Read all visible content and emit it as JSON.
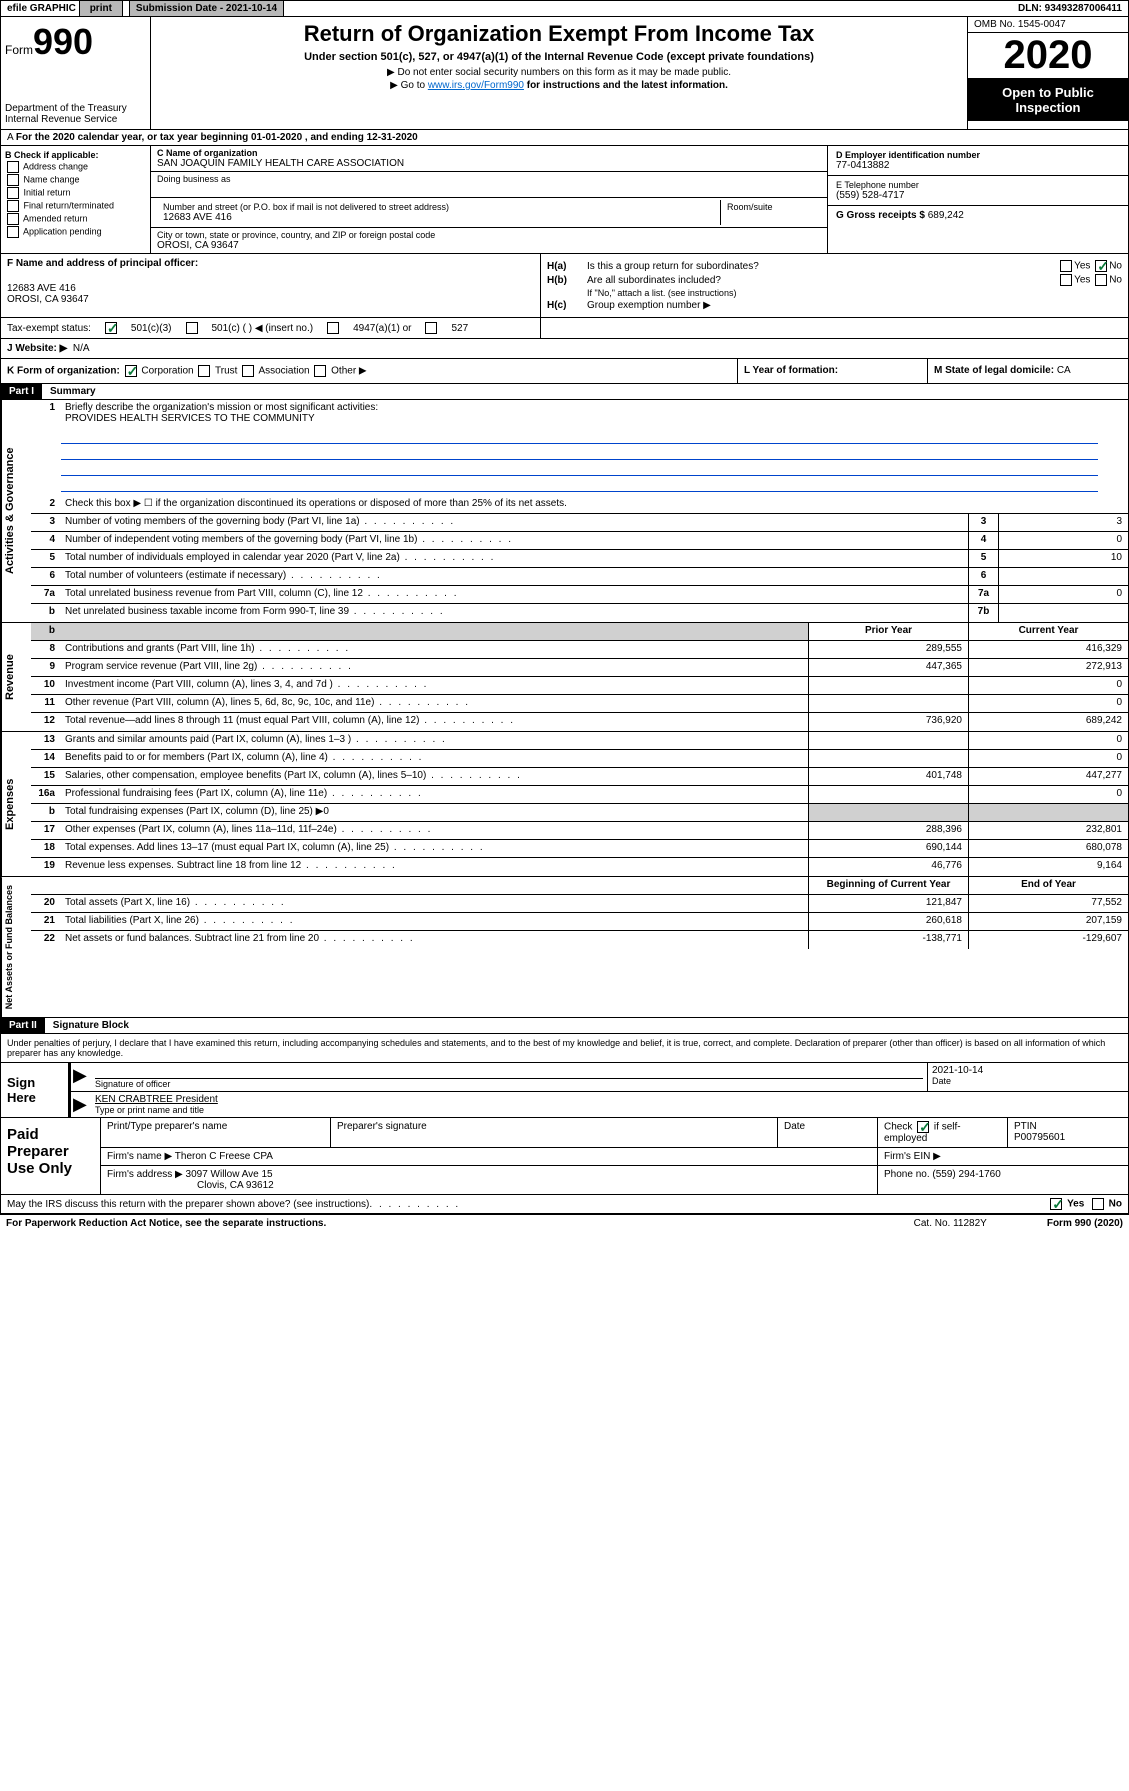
{
  "topbar": {
    "efile_label": "efile GRAPHIC",
    "print_label": "print",
    "sub_date_label": "Submission Date - 2021-10-14",
    "dln": "DLN: 93493287006411"
  },
  "header": {
    "form_word": "Form",
    "form_num": "990",
    "dept": "Department of the Treasury\nInternal Revenue Service",
    "title": "Return of Organization Exempt From Income Tax",
    "subtitle": "Under section 501(c), 527, or 4947(a)(1) of the Internal Revenue Code (except private foundations)",
    "inst1": "▶ Do not enter social security numbers on this form as it may be made public.",
    "inst2_pre": "▶ Go to ",
    "inst2_link": "www.irs.gov/Form990",
    "inst2_post": " for instructions and the latest information.",
    "omb": "OMB No. 1545-0047",
    "year": "2020",
    "open_public": "Open to Public Inspection"
  },
  "period": "For the 2020 calendar year, or tax year beginning 01-01-2020    , and ending 12-31-2020",
  "section_b": {
    "header": "B Check if applicable:",
    "items": [
      "Address change",
      "Name change",
      "Initial return",
      "Final return/terminated",
      "Amended return",
      "Application pending"
    ]
  },
  "section_c": {
    "name_label": "C Name of organization",
    "name": "SAN JOAQUIN FAMILY HEALTH CARE ASSOCIATION",
    "dba_label": "Doing business as",
    "addr_label": "Number and street (or P.O. box if mail is not delivered to street address)",
    "room_label": "Room/suite",
    "addr": "12683 AVE 416",
    "city_label": "City or town, state or province, country, and ZIP or foreign postal code",
    "city": "OROSI, CA  93647"
  },
  "section_d": {
    "label": "D Employer identification number",
    "value": "77-0413882"
  },
  "section_e": {
    "label": "E Telephone number",
    "value": "(559) 528-4717"
  },
  "section_g": {
    "label": "G Gross receipts $",
    "value": "689,242"
  },
  "section_f": {
    "label": "F  Name and address of principal officer:",
    "addr1": "12683 AVE 416",
    "addr2": "OROSI, CA  93647"
  },
  "section_h": {
    "ha": "Is this a group return for subordinates?",
    "hb": "Are all subordinates included?",
    "hb_note": "If \"No,\" attach a list. (see instructions)",
    "hc": "Group exemption number ▶",
    "yes": "Yes",
    "no": "No"
  },
  "tax_status": {
    "label": "Tax-exempt status:",
    "opt1": "501(c)(3)",
    "opt2": "501(c) (  ) ◀ (insert no.)",
    "opt3": "4947(a)(1) or",
    "opt4": "527"
  },
  "section_j": {
    "label": "J    Website: ▶",
    "value": "N/A"
  },
  "section_k": {
    "label": "K Form of organization:",
    "opts": [
      "Corporation",
      "Trust",
      "Association",
      "Other ▶"
    ]
  },
  "section_l": {
    "label": "L Year of formation:",
    "value": ""
  },
  "section_m": {
    "label": "M State of legal domicile:",
    "value": "CA"
  },
  "part1": {
    "tag": "Part I",
    "title": "Summary"
  },
  "summary": {
    "q1_label": "Briefly describe the organization's mission or most significant activities:",
    "q1_text": "PROVIDES HEALTH SERVICES TO THE COMMUNITY",
    "q2": "Check this box ▶ ☐  if the organization discontinued its operations or disposed of more than 25% of its net assets.",
    "rows_gov": [
      {
        "n": "3",
        "d": "Number of voting members of the governing body (Part VI, line 1a)",
        "bn": "3",
        "v": "3"
      },
      {
        "n": "4",
        "d": "Number of independent voting members of the governing body (Part VI, line 1b)",
        "bn": "4",
        "v": "0"
      },
      {
        "n": "5",
        "d": "Total number of individuals employed in calendar year 2020 (Part V, line 2a)",
        "bn": "5",
        "v": "10"
      },
      {
        "n": "6",
        "d": "Total number of volunteers (estimate if necessary)",
        "bn": "6",
        "v": ""
      },
      {
        "n": "7a",
        "d": "Total unrelated business revenue from Part VIII, column (C), line 12",
        "bn": "7a",
        "v": "0"
      },
      {
        "n": "b",
        "d": "Net unrelated business taxable income from Form 990-T, line 39",
        "bn": "7b",
        "v": ""
      }
    ],
    "col_prior": "Prior Year",
    "col_current": "Current Year",
    "rows_rev": [
      {
        "n": "8",
        "d": "Contributions and grants (Part VIII, line 1h)",
        "p": "289,555",
        "c": "416,329"
      },
      {
        "n": "9",
        "d": "Program service revenue (Part VIII, line 2g)",
        "p": "447,365",
        "c": "272,913"
      },
      {
        "n": "10",
        "d": "Investment income (Part VIII, column (A), lines 3, 4, and 7d )",
        "p": "",
        "c": "0"
      },
      {
        "n": "11",
        "d": "Other revenue (Part VIII, column (A), lines 5, 6d, 8c, 9c, 10c, and 11e)",
        "p": "",
        "c": "0"
      },
      {
        "n": "12",
        "d": "Total revenue—add lines 8 through 11 (must equal Part VIII, column (A), line 12)",
        "p": "736,920",
        "c": "689,242"
      }
    ],
    "rows_exp": [
      {
        "n": "13",
        "d": "Grants and similar amounts paid (Part IX, column (A), lines 1–3 )",
        "p": "",
        "c": "0"
      },
      {
        "n": "14",
        "d": "Benefits paid to or for members (Part IX, column (A), line 4)",
        "p": "",
        "c": "0"
      },
      {
        "n": "15",
        "d": "Salaries, other compensation, employee benefits (Part IX, column (A), lines 5–10)",
        "p": "401,748",
        "c": "447,277"
      },
      {
        "n": "16a",
        "d": "Professional fundraising fees (Part IX, column (A), line 11e)",
        "p": "",
        "c": "0"
      },
      {
        "n": "b",
        "d": "Total fundraising expenses (Part IX, column (D), line 25) ▶0",
        "p": "grey",
        "c": "grey"
      },
      {
        "n": "17",
        "d": "Other expenses (Part IX, column (A), lines 11a–11d, 11f–24e)",
        "p": "288,396",
        "c": "232,801"
      },
      {
        "n": "18",
        "d": "Total expenses. Add lines 13–17 (must equal Part IX, column (A), line 25)",
        "p": "690,144",
        "c": "680,078"
      },
      {
        "n": "19",
        "d": "Revenue less expenses. Subtract line 18 from line 12",
        "p": "46,776",
        "c": "9,164"
      }
    ],
    "col_begin": "Beginning of Current Year",
    "col_end": "End of Year",
    "rows_net": [
      {
        "n": "20",
        "d": "Total assets (Part X, line 16)",
        "p": "121,847",
        "c": "77,552"
      },
      {
        "n": "21",
        "d": "Total liabilities (Part X, line 26)",
        "p": "260,618",
        "c": "207,159"
      },
      {
        "n": "22",
        "d": "Net assets or fund balances. Subtract line 21 from line 20",
        "p": "-138,771",
        "c": "-129,607"
      }
    ]
  },
  "side_labels": {
    "gov": "Activities & Governance",
    "rev": "Revenue",
    "exp": "Expenses",
    "net": "Net Assets or Fund Balances"
  },
  "part2": {
    "tag": "Part II",
    "title": "Signature Block"
  },
  "perjury": "Under penalties of perjury, I declare that I have examined this return, including accompanying schedules and statements, and to the best of my knowledge and belief, it is true, correct, and complete. Declaration of preparer (other than officer) is based on all information of which preparer has any knowledge.",
  "sign": {
    "label": "Sign Here",
    "sig_label": "Signature of officer",
    "date": "2021-10-14",
    "date_label": "Date",
    "name": "KEN CRABTREE President",
    "name_label": "Type or print name and title"
  },
  "paid": {
    "label": "Paid Preparer Use Only",
    "h1": "Print/Type preparer's name",
    "h2": "Preparer's signature",
    "h3": "Date",
    "h4_pre": "Check",
    "h4_post": "if self-employed",
    "h5": "PTIN",
    "ptin": "P00795601",
    "firm_name_label": "Firm's name    ▶",
    "firm_name": "Theron C Freese CPA",
    "firm_ein_label": "Firm's EIN ▶",
    "firm_addr_label": "Firm's address ▶",
    "firm_addr1": "3097 Willow Ave 15",
    "firm_addr2": "Clovis, CA  93612",
    "phone_label": "Phone no.",
    "phone": "(559) 294-1760"
  },
  "discuss": {
    "q": "May the IRS discuss this return with the preparer shown above? (see instructions)",
    "yes": "Yes",
    "no": "No"
  },
  "footer": {
    "paperwork": "For Paperwork Reduction Act Notice, see the separate instructions.",
    "cat": "Cat. No. 11282Y",
    "form": "Form 990 (2020)"
  }
}
